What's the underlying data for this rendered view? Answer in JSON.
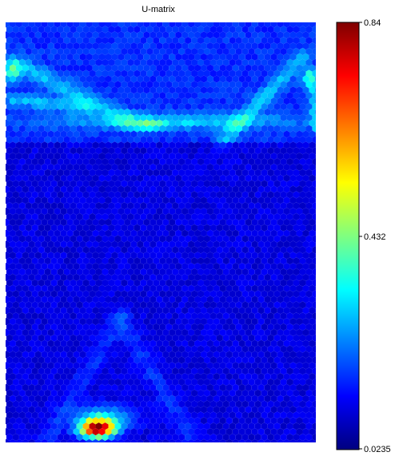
{
  "chart_data": {
    "type": "heatmap",
    "title": "U-matrix",
    "grid": "hexagonal",
    "colormap": "jet",
    "colorbar": {
      "min": 0.0235,
      "max": 0.84,
      "tick_labels": [
        "0.84",
        "0.432",
        "0.0235"
      ],
      "tick_values": [
        0.84,
        0.432,
        0.0235
      ]
    },
    "background_level": 0.1,
    "features": [
      {
        "name": "upper-left-ridge",
        "value": 0.33
      },
      {
        "name": "upper-band",
        "value": 0.3
      },
      {
        "name": "upper-right-ridge",
        "value": 0.3
      },
      {
        "name": "lower-triangle",
        "value": 0.2
      },
      {
        "name": "bottom-hotspot",
        "value": 0.84
      }
    ]
  }
}
